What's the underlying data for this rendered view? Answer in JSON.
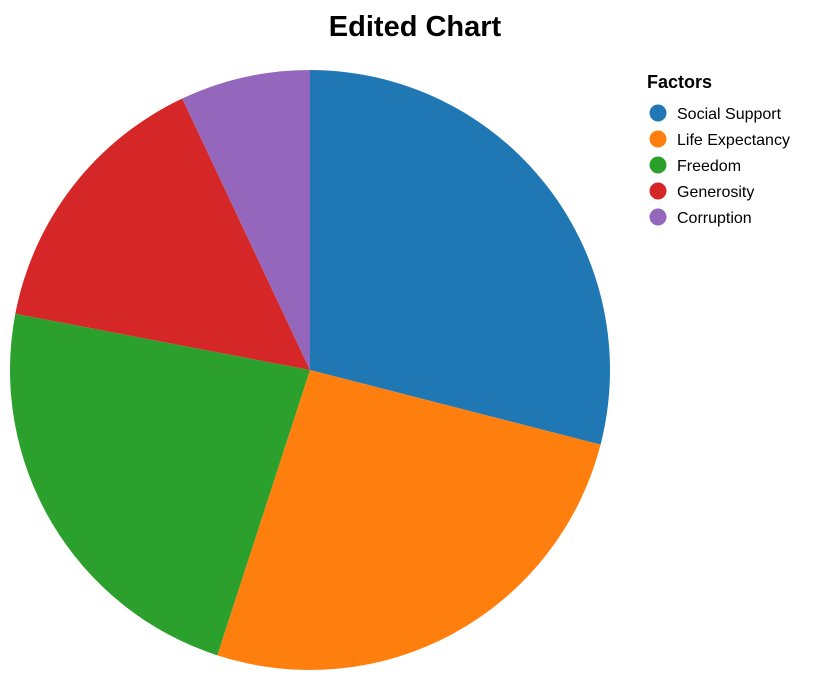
{
  "chart_data": {
    "type": "pie",
    "title": "Edited Chart",
    "legend_title": "Factors",
    "legend_position": "top-right",
    "categories": [
      "Social Support",
      "Life Expectancy",
      "Freedom",
      "Generosity",
      "Corruption"
    ],
    "values": [
      29,
      26,
      23,
      15,
      7
    ],
    "colors": [
      "#1f77b4",
      "#ff7f0e",
      "#2ca02c",
      "#d62728",
      "#9467bd"
    ]
  }
}
